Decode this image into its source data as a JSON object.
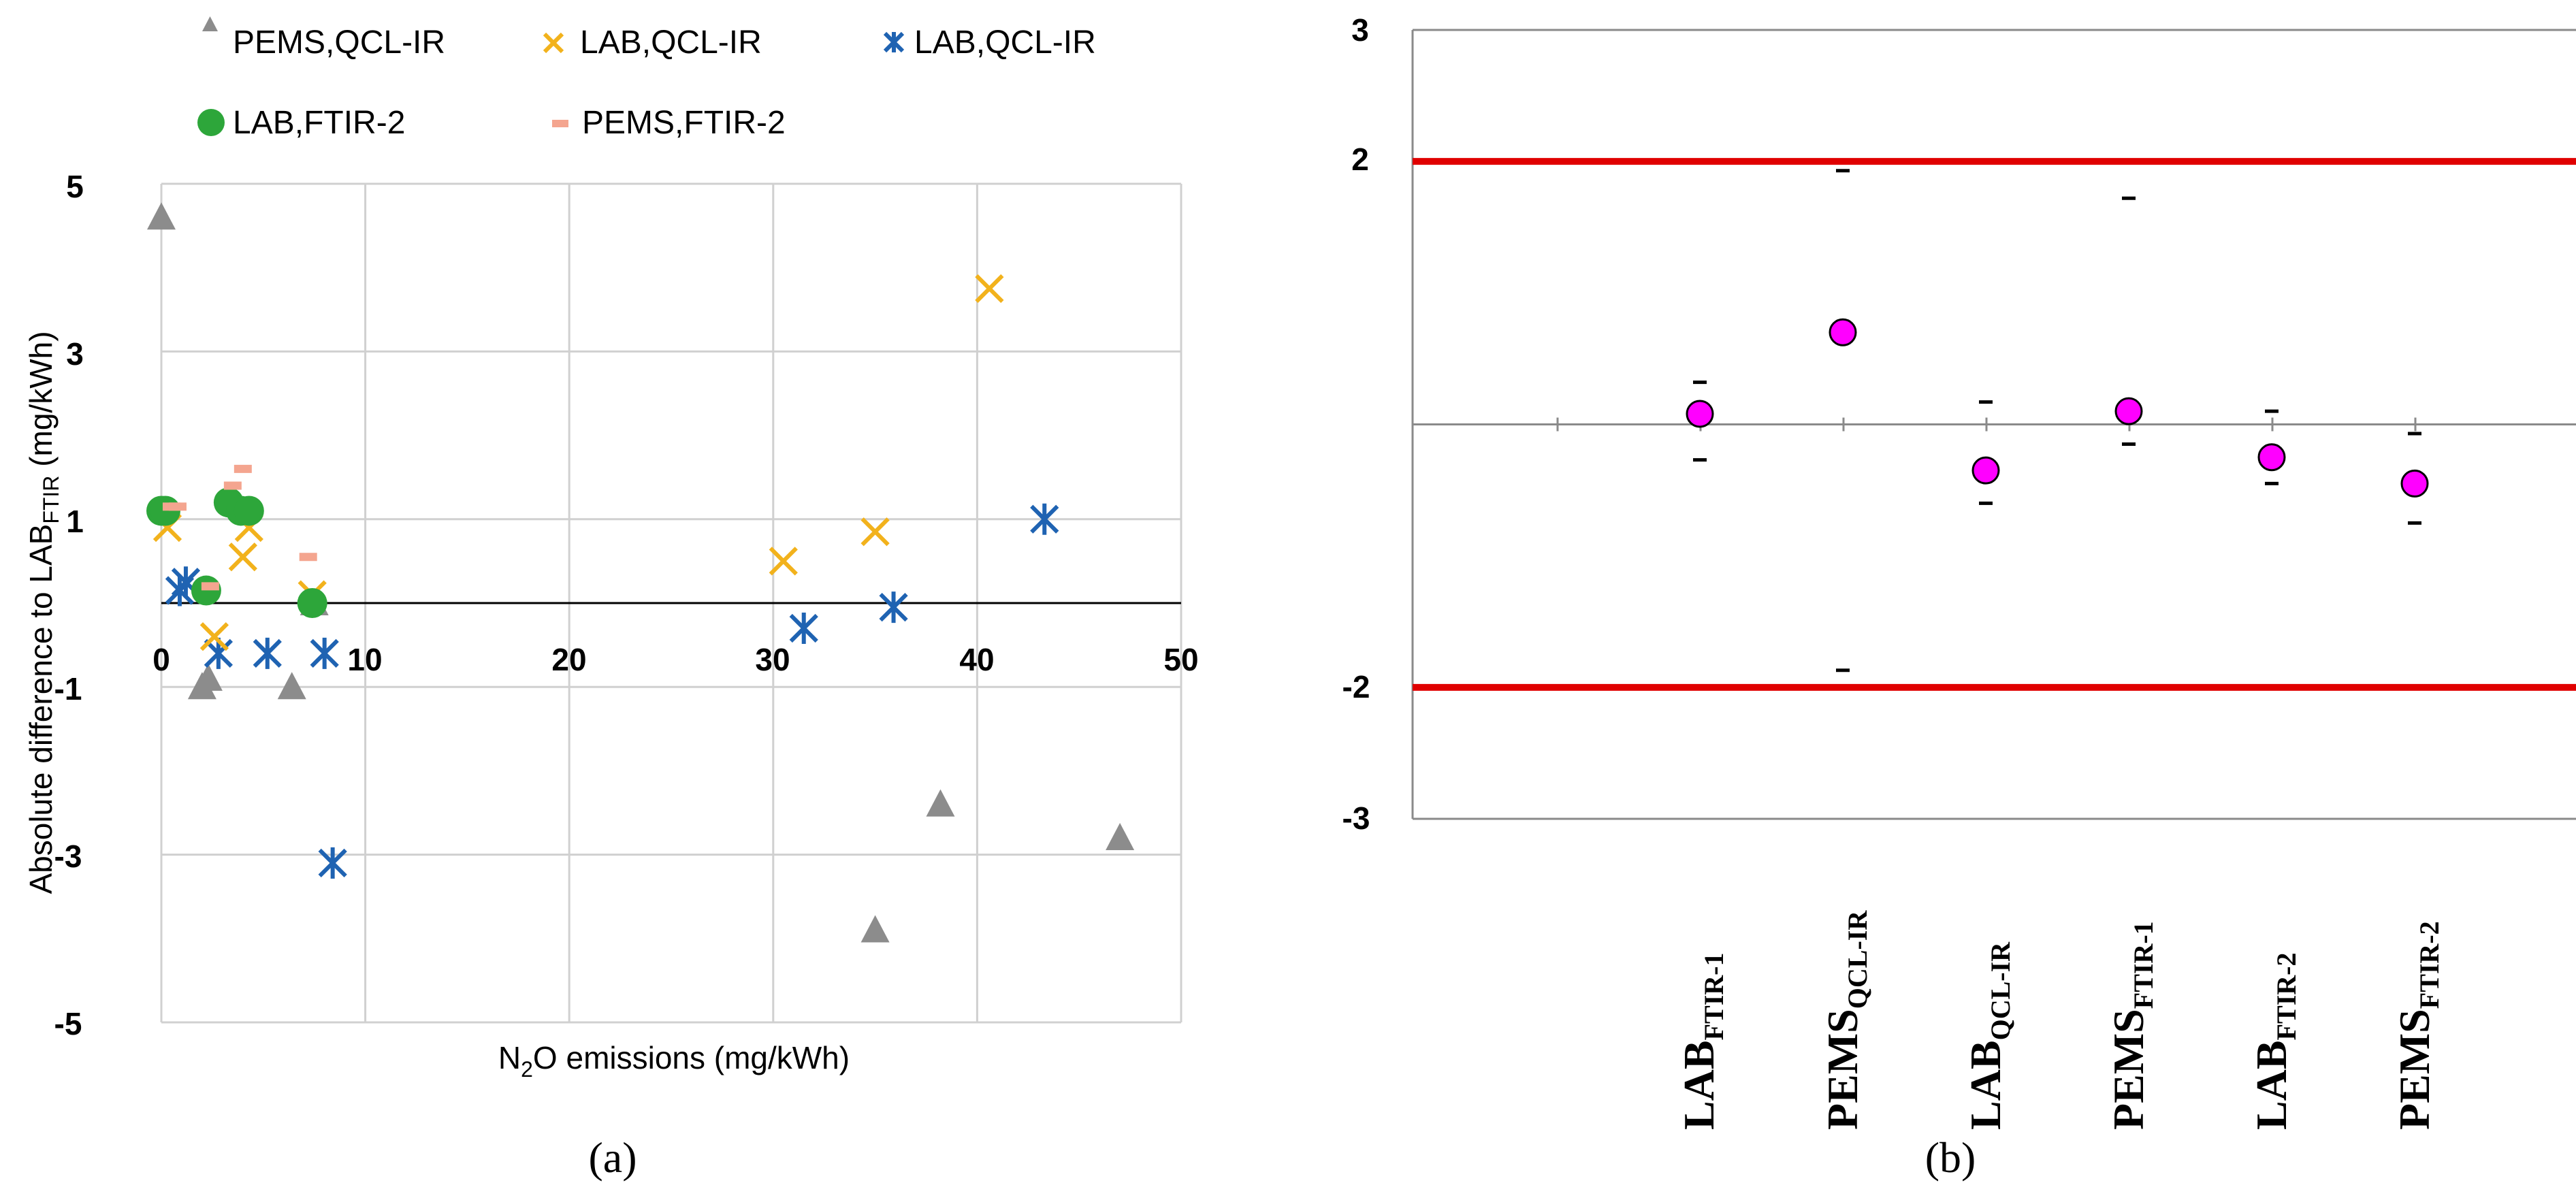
{
  "colors": {
    "pems_qcl": "#8c8c8c",
    "lab_qcl_orange": "#f2b21c",
    "lab_qcl_blue": "#1f63b2",
    "lab_ftir2": "#2da63a",
    "pems_ftir2": "#f4a58f",
    "limit_line": "#e00000",
    "marker_magenta": "#ff00ff",
    "grid": "#d0d0d0"
  },
  "chart_data": [
    {
      "panel_label": "(a)",
      "type": "scatter",
      "xlabel_prefix": "N",
      "xlabel_sub": "2",
      "xlabel_suffix": "O emissions (mg/kWh)",
      "ylabel_prefix": "Absolute difference to LAB",
      "ylabel_sub": "FTIR",
      "ylabel_suffix": " (mg/kWh)",
      "xlim": [
        0,
        50
      ],
      "ylim": [
        -5,
        5
      ],
      "x_ticks": [
        "0",
        "10",
        "20",
        "30",
        "40",
        "50"
      ],
      "y_ticks": [
        "5",
        "3",
        "1",
        "-1",
        "-3",
        "-5"
      ],
      "series": [
        {
          "name": "PEMS,QCL-IR",
          "marker": "triangle",
          "color_key": "pems_qcl",
          "points": [
            [
              0,
              4.6
            ],
            [
              2,
              -1.0
            ],
            [
              2.3,
              -0.9
            ],
            [
              6.4,
              -1.0
            ],
            [
              7.5,
              0.0
            ],
            [
              35,
              -3.9
            ],
            [
              38.2,
              -2.4
            ],
            [
              47,
              -2.8
            ]
          ]
        },
        {
          "name": "LAB,QCL-IR",
          "marker": "x",
          "color_key": "lab_qcl_orange",
          "points": [
            [
              0.3,
              0.9
            ],
            [
              2.6,
              -0.4
            ],
            [
              4,
              0.55
            ],
            [
              4.3,
              0.9
            ],
            [
              7.4,
              0.1
            ],
            [
              30.5,
              0.5
            ],
            [
              35,
              0.85
            ],
            [
              40.6,
              3.75
            ]
          ]
        },
        {
          "name": "LAB,QCL-IR",
          "marker": "asterisk",
          "color_key": "lab_qcl_blue",
          "points": [
            [
              0.9,
              0.15
            ],
            [
              1.2,
              0.25
            ],
            [
              2.8,
              -0.6
            ],
            [
              5.2,
              -0.6
            ],
            [
              8,
              -0.6
            ],
            [
              8.4,
              -3.1
            ],
            [
              31.5,
              -0.3
            ],
            [
              35.9,
              -0.05
            ],
            [
              43.3,
              1.0
            ]
          ]
        },
        {
          "name": "LAB,FTIR-2",
          "marker": "circle",
          "color_key": "lab_ftir2",
          "points": [
            [
              0,
              1.1
            ],
            [
              0.2,
              1.1
            ],
            [
              2.2,
              0.15
            ],
            [
              3.3,
              1.2
            ],
            [
              3.9,
              1.1
            ],
            [
              4.3,
              1.1
            ],
            [
              7.4,
              0.0
            ]
          ]
        },
        {
          "name": "PEMS,FTIR-2",
          "marker": "dash",
          "color_key": "pems_ftir2",
          "points": [
            [
              0.5,
              1.15
            ],
            [
              0.8,
              1.15
            ],
            [
              2.4,
              0.2
            ],
            [
              3.5,
              1.4
            ],
            [
              4,
              1.6
            ],
            [
              7.2,
              0.55
            ]
          ]
        }
      ]
    },
    {
      "panel_label": "(b)",
      "type": "scatter",
      "ylim": [
        -3,
        3
      ],
      "y_ticks": [
        "3",
        "2",
        "-2",
        "-3"
      ],
      "limit_lines": [
        2,
        -2
      ],
      "categories": [
        {
          "main": "LAB",
          "sub": "FTIR-1",
          "value": 0.08,
          "upper": 0.32,
          "lower": -0.27
        },
        {
          "main": "PEMS",
          "sub": "QCL-IR",
          "value": 0.7,
          "upper": 1.93,
          "lower": -1.87
        },
        {
          "main": "LAB",
          "sub": "QCL-IR",
          "value": -0.35,
          "upper": 0.17,
          "lower": -0.6
        },
        {
          "main": "PEMS",
          "sub": "FTIR-1",
          "value": 0.1,
          "upper": 1.72,
          "lower": -0.15
        },
        {
          "main": "LAB",
          "sub": "FTIR-2",
          "value": -0.25,
          "upper": 0.1,
          "lower": -0.45
        },
        {
          "main": "PEMS",
          "sub": "FTIR-2",
          "value": -0.45,
          "upper": -0.07,
          "lower": -0.75
        }
      ]
    }
  ]
}
